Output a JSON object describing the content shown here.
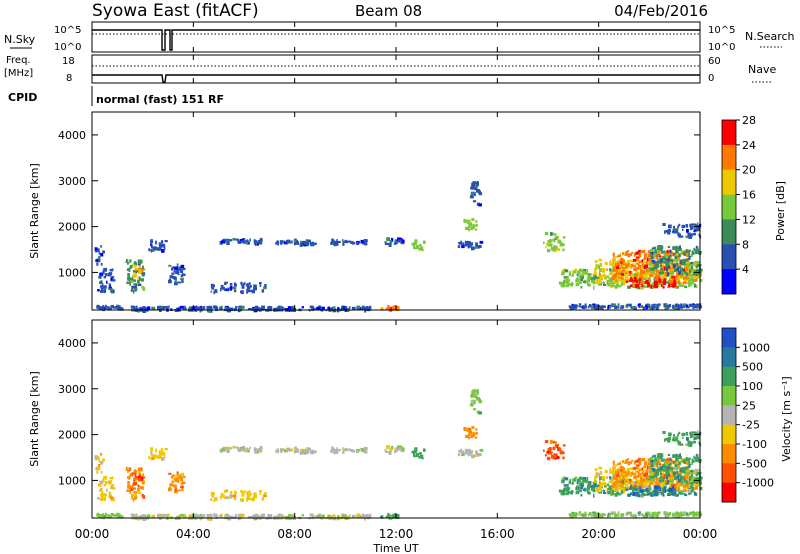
{
  "header": {
    "station": "Syowa East (fitACF)",
    "beam": "Beam 08",
    "date": "04/Feb/2016"
  },
  "top_panels": {
    "nsky_label": "N.Sky",
    "nsky_ticks": [
      "10^5",
      "10^0"
    ],
    "nsearch_label": "N.Search",
    "freq_label_line1": "Freq.",
    "freq_label_line2": "[MHz]",
    "freq_ticks": [
      "18",
      "8"
    ],
    "nave_label": "Nave",
    "nave_ticks": [
      "60",
      "0"
    ],
    "cpid_label": "CPID",
    "cpid_text": "normal (fast) 151 RF"
  },
  "chart_data": [
    {
      "type": "heatmap",
      "panel": "power",
      "ylabel": "Slant Range [km]",
      "xlabel": "",
      "xlim": [
        0,
        24
      ],
      "ylim": [
        180,
        4500
      ],
      "yticks": [
        1000,
        2000,
        3000,
        4000
      ],
      "colorbar_label": "Power [dB]",
      "colorbar_ticks": [
        "4",
        "8",
        "12",
        "16",
        "20",
        "24",
        "28"
      ],
      "colorbar_colors": [
        "#0000ff",
        "#2850b4",
        "#3c8c5a",
        "#78c83c",
        "#f0c800",
        "#ff7800",
        "#ff0000"
      ],
      "blobs": [
        {
          "t0": 0.1,
          "t1": 1.2,
          "r0": 220,
          "r1": 300,
          "c": 1
        },
        {
          "t0": 0.2,
          "t1": 0.8,
          "r0": 600,
          "r1": 1100,
          "c": 1
        },
        {
          "t0": 0.1,
          "t1": 0.4,
          "r0": 1200,
          "r1": 1600,
          "c": 1
        },
        {
          "t0": 1.3,
          "t1": 2.0,
          "r0": 600,
          "r1": 1300,
          "c": 2
        },
        {
          "t0": 1.6,
          "t1": 1.9,
          "r0": 900,
          "r1": 1200,
          "c": 4
        },
        {
          "t0": 2.2,
          "t1": 2.9,
          "r0": 1500,
          "r1": 1750,
          "c": 1
        },
        {
          "t0": 3.0,
          "t1": 3.6,
          "r0": 800,
          "r1": 1200,
          "c": 1
        },
        {
          "t0": 4.6,
          "t1": 6.8,
          "r0": 600,
          "r1": 800,
          "c": 1
        },
        {
          "t0": 5.0,
          "t1": 6.7,
          "r0": 1660,
          "r1": 1760,
          "c": 1
        },
        {
          "t0": 7.2,
          "t1": 8.8,
          "r0": 1640,
          "r1": 1740,
          "c": 1
        },
        {
          "t0": 9.4,
          "t1": 10.8,
          "r0": 1640,
          "r1": 1740,
          "c": 1
        },
        {
          "t0": 11.5,
          "t1": 12.2,
          "r0": 1620,
          "r1": 1780,
          "c": 1
        },
        {
          "t0": 12.6,
          "t1": 13.1,
          "r0": 1500,
          "r1": 1750,
          "c": 3
        },
        {
          "t0": 14.4,
          "t1": 15.3,
          "r0": 1550,
          "r1": 1700,
          "c": 1
        },
        {
          "t0": 14.6,
          "t1": 15.2,
          "r0": 1950,
          "r1": 2200,
          "c": 3
        },
        {
          "t0": 14.9,
          "t1": 15.3,
          "r0": 2500,
          "r1": 3000,
          "c": 1
        },
        {
          "t0": 11.3,
          "t1": 12.0,
          "r0": 200,
          "r1": 300,
          "c": 5
        },
        {
          "t0": 1.5,
          "t1": 11.0,
          "r0": 200,
          "r1": 280,
          "c": 1
        },
        {
          "t0": 17.8,
          "t1": 18.6,
          "r0": 1500,
          "r1": 1900,
          "c": 3
        },
        {
          "t0": 18.4,
          "t1": 24.0,
          "r0": 700,
          "r1": 1100,
          "c": 3
        },
        {
          "t0": 19.8,
          "t1": 24.0,
          "r0": 800,
          "r1": 1300,
          "c": 4
        },
        {
          "t0": 20.5,
          "t1": 23.5,
          "r0": 900,
          "r1": 1500,
          "c": 5
        },
        {
          "t0": 21.0,
          "t1": 23.0,
          "r0": 700,
          "r1": 900,
          "c": 6
        },
        {
          "t0": 22.0,
          "t1": 24.0,
          "r0": 1000,
          "r1": 1600,
          "c": 2
        },
        {
          "t0": 18.8,
          "t1": 24.0,
          "r0": 250,
          "r1": 330,
          "c": 1
        },
        {
          "t0": 22.5,
          "t1": 24.0,
          "r0": 1800,
          "r1": 2100,
          "c": 1
        }
      ]
    },
    {
      "type": "heatmap",
      "panel": "velocity",
      "ylabel": "Slant Range [km]",
      "xlabel": "Time UT",
      "xlim": [
        0,
        24
      ],
      "ylim": [
        180,
        4500
      ],
      "yticks": [
        1000,
        2000,
        3000,
        4000
      ],
      "xticks": [
        "00:00",
        "04:00",
        "08:00",
        "12:00",
        "16:00",
        "20:00",
        "00:00"
      ],
      "colorbar_label": "Velocity [m s⁻¹]",
      "colorbar_ticks": [
        "1000",
        "500",
        "100",
        "25",
        "-25",
        "-100",
        "-500",
        "-1000"
      ],
      "colorbar_colors": [
        "#1e50c8",
        "#2878a0",
        "#3ca05a",
        "#78c83c",
        "#b4b4b4",
        "#f0c800",
        "#ff8c00",
        "#ff5000",
        "#ff0000"
      ],
      "blobs": [
        {
          "t0": 0.1,
          "t1": 1.2,
          "r0": 220,
          "r1": 300,
          "c": 3
        },
        {
          "t0": 0.2,
          "t1": 0.8,
          "r0": 600,
          "r1": 1100,
          "c": 5
        },
        {
          "t0": 0.1,
          "t1": 0.4,
          "r0": 1200,
          "r1": 1600,
          "c": 5
        },
        {
          "t0": 1.3,
          "t1": 2.0,
          "r0": 600,
          "r1": 1300,
          "c": 6
        },
        {
          "t0": 1.6,
          "t1": 1.9,
          "r0": 900,
          "r1": 1200,
          "c": 7
        },
        {
          "t0": 2.2,
          "t1": 2.9,
          "r0": 1500,
          "r1": 1750,
          "c": 5
        },
        {
          "t0": 3.0,
          "t1": 3.6,
          "r0": 800,
          "r1": 1200,
          "c": 6
        },
        {
          "t0": 4.6,
          "t1": 6.8,
          "r0": 600,
          "r1": 800,
          "c": 5
        },
        {
          "t0": 5.0,
          "t1": 6.7,
          "r0": 1660,
          "r1": 1760,
          "c": 4
        },
        {
          "t0": 7.2,
          "t1": 8.8,
          "r0": 1640,
          "r1": 1740,
          "c": 4
        },
        {
          "t0": 9.4,
          "t1": 10.8,
          "r0": 1640,
          "r1": 1740,
          "c": 4
        },
        {
          "t0": 11.5,
          "t1": 12.2,
          "r0": 1620,
          "r1": 1780,
          "c": 4
        },
        {
          "t0": 12.6,
          "t1": 13.1,
          "r0": 1500,
          "r1": 1750,
          "c": 2
        },
        {
          "t0": 14.4,
          "t1": 15.3,
          "r0": 1550,
          "r1": 1700,
          "c": 4
        },
        {
          "t0": 14.6,
          "t1": 15.2,
          "r0": 1950,
          "r1": 2200,
          "c": 6
        },
        {
          "t0": 14.9,
          "t1": 15.3,
          "r0": 2500,
          "r1": 3000,
          "c": 3
        },
        {
          "t0": 11.3,
          "t1": 12.0,
          "r0": 200,
          "r1": 300,
          "c": 2
        },
        {
          "t0": 1.5,
          "t1": 11.0,
          "r0": 200,
          "r1": 280,
          "c": 4
        },
        {
          "t0": 17.8,
          "t1": 18.6,
          "r0": 1500,
          "r1": 1900,
          "c": 7
        },
        {
          "t0": 18.4,
          "t1": 24.0,
          "r0": 700,
          "r1": 1100,
          "c": 2
        },
        {
          "t0": 19.8,
          "t1": 24.0,
          "r0": 800,
          "r1": 1300,
          "c": 5
        },
        {
          "t0": 20.5,
          "t1": 23.5,
          "r0": 900,
          "r1": 1500,
          "c": 6
        },
        {
          "t0": 21.0,
          "t1": 23.0,
          "r0": 700,
          "r1": 900,
          "c": 1
        },
        {
          "t0": 22.0,
          "t1": 24.0,
          "r0": 1000,
          "r1": 1600,
          "c": 2
        },
        {
          "t0": 18.8,
          "t1": 24.0,
          "r0": 250,
          "r1": 330,
          "c": 3
        },
        {
          "t0": 22.5,
          "t1": 24.0,
          "r0": 1800,
          "r1": 2100,
          "c": 2
        }
      ]
    }
  ]
}
